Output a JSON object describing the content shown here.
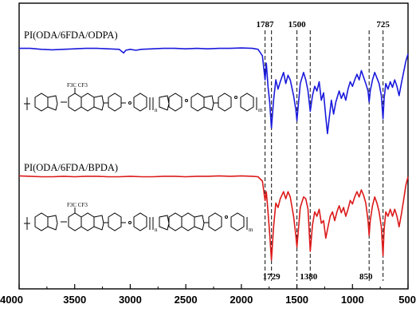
{
  "chart_data": {
    "type": "line",
    "title": "",
    "xlabel": "",
    "ylabel": "",
    "x_reversed": true,
    "xlim": [
      4000,
      500
    ],
    "x_ticks": [
      "4000",
      "3500",
      "3000",
      "2500",
      "2000",
      "1500",
      "1000",
      "500"
    ],
    "y_ticks_shown": false,
    "grid": false,
    "series": [
      {
        "name": "PI(ODA/6FDA/ODPA)",
        "color": "#1a1adc",
        "offset": 0.5,
        "points": [
          [
            4000,
            0.04
          ],
          [
            3900,
            0.04
          ],
          [
            3800,
            0.05
          ],
          [
            3700,
            0.055
          ],
          [
            3600,
            0.05
          ],
          [
            3500,
            0.045
          ],
          [
            3400,
            0.04
          ],
          [
            3300,
            0.04
          ],
          [
            3200,
            0.045
          ],
          [
            3100,
            0.05
          ],
          [
            3060,
            0.09
          ],
          [
            3040,
            0.06
          ],
          [
            3000,
            0.05
          ],
          [
            2950,
            0.06
          ],
          [
            2900,
            0.05
          ],
          [
            2800,
            0.045
          ],
          [
            2700,
            0.04
          ],
          [
            2600,
            0.04
          ],
          [
            2500,
            0.045
          ],
          [
            2400,
            0.04
          ],
          [
            2300,
            0.045
          ],
          [
            2200,
            0.04
          ],
          [
            2100,
            0.04
          ],
          [
            2000,
            0.035
          ],
          [
            1900,
            0.04
          ],
          [
            1850,
            0.05
          ],
          [
            1810,
            0.12
          ],
          [
            1787,
            0.38
          ],
          [
            1775,
            0.2
          ],
          [
            1760,
            0.45
          ],
          [
            1745,
            0.62
          ],
          [
            1729,
            0.9
          ],
          [
            1710,
            0.6
          ],
          [
            1690,
            0.38
          ],
          [
            1670,
            0.48
          ],
          [
            1650,
            0.4
          ],
          [
            1620,
            0.3
          ],
          [
            1600,
            0.42
          ],
          [
            1580,
            0.33
          ],
          [
            1560,
            0.38
          ],
          [
            1530,
            0.55
          ],
          [
            1510,
            0.7
          ],
          [
            1500,
            0.82
          ],
          [
            1490,
            0.68
          ],
          [
            1470,
            0.42
          ],
          [
            1440,
            0.3
          ],
          [
            1420,
            0.38
          ],
          [
            1400,
            0.5
          ],
          [
            1380,
            0.72
          ],
          [
            1360,
            0.55
          ],
          [
            1340,
            0.45
          ],
          [
            1320,
            0.5
          ],
          [
            1300,
            0.4
          ],
          [
            1280,
            0.6
          ],
          [
            1260,
            0.52
          ],
          [
            1240,
            0.78
          ],
          [
            1225,
            0.96
          ],
          [
            1210,
            0.8
          ],
          [
            1190,
            0.6
          ],
          [
            1170,
            0.75
          ],
          [
            1150,
            0.62
          ],
          [
            1120,
            0.5
          ],
          [
            1100,
            0.58
          ],
          [
            1080,
            0.52
          ],
          [
            1060,
            0.6
          ],
          [
            1040,
            0.48
          ],
          [
            1020,
            0.4
          ],
          [
            1000,
            0.45
          ],
          [
            980,
            0.38
          ],
          [
            960,
            0.32
          ],
          [
            940,
            0.38
          ],
          [
            920,
            0.28
          ],
          [
            900,
            0.35
          ],
          [
            880,
            0.42
          ],
          [
            860,
            0.5
          ],
          [
            850,
            0.62
          ],
          [
            840,
            0.5
          ],
          [
            820,
            0.38
          ],
          [
            800,
            0.3
          ],
          [
            780,
            0.36
          ],
          [
            760,
            0.42
          ],
          [
            740,
            0.55
          ],
          [
            725,
            0.8
          ],
          [
            715,
            0.58
          ],
          [
            700,
            0.42
          ],
          [
            680,
            0.48
          ],
          [
            660,
            0.4
          ],
          [
            640,
            0.46
          ],
          [
            620,
            0.38
          ],
          [
            600,
            0.45
          ],
          [
            580,
            0.55
          ],
          [
            560,
            0.42
          ],
          [
            540,
            0.3
          ],
          [
            520,
            0.18
          ],
          [
            500,
            0.1
          ]
        ]
      },
      {
        "name": "PI(ODA/6FDA/BPDA)",
        "color": "#dc1a1a",
        "offset": 0.0,
        "points": [
          [
            4000,
            0.04
          ],
          [
            3900,
            0.045
          ],
          [
            3800,
            0.05
          ],
          [
            3700,
            0.05
          ],
          [
            3600,
            0.045
          ],
          [
            3500,
            0.05
          ],
          [
            3400,
            0.045
          ],
          [
            3300,
            0.045
          ],
          [
            3200,
            0.05
          ],
          [
            3100,
            0.05
          ],
          [
            3000,
            0.045
          ],
          [
            2900,
            0.05
          ],
          [
            2800,
            0.05
          ],
          [
            2700,
            0.045
          ],
          [
            2600,
            0.045
          ],
          [
            2500,
            0.05
          ],
          [
            2400,
            0.045
          ],
          [
            2300,
            0.045
          ],
          [
            2200,
            0.04
          ],
          [
            2100,
            0.045
          ],
          [
            2000,
            0.04
          ],
          [
            1900,
            0.045
          ],
          [
            1850,
            0.05
          ],
          [
            1810,
            0.1
          ],
          [
            1787,
            0.32
          ],
          [
            1775,
            0.22
          ],
          [
            1760,
            0.45
          ],
          [
            1745,
            0.7
          ],
          [
            1729,
            1.0
          ],
          [
            1710,
            0.62
          ],
          [
            1690,
            0.35
          ],
          [
            1670,
            0.4
          ],
          [
            1650,
            0.3
          ],
          [
            1620,
            0.22
          ],
          [
            1600,
            0.3
          ],
          [
            1580,
            0.22
          ],
          [
            1560,
            0.28
          ],
          [
            1530,
            0.5
          ],
          [
            1510,
            0.72
          ],
          [
            1500,
            0.85
          ],
          [
            1490,
            0.7
          ],
          [
            1470,
            0.4
          ],
          [
            1440,
            0.28
          ],
          [
            1420,
            0.3
          ],
          [
            1400,
            0.42
          ],
          [
            1380,
            0.9
          ],
          [
            1360,
            0.6
          ],
          [
            1340,
            0.45
          ],
          [
            1320,
            0.5
          ],
          [
            1300,
            0.42
          ],
          [
            1280,
            0.58
          ],
          [
            1260,
            0.55
          ],
          [
            1240,
            0.75
          ],
          [
            1220,
            0.62
          ],
          [
            1200,
            0.5
          ],
          [
            1180,
            0.45
          ],
          [
            1160,
            0.55
          ],
          [
            1140,
            0.45
          ],
          [
            1120,
            0.38
          ],
          [
            1100,
            0.46
          ],
          [
            1080,
            0.4
          ],
          [
            1060,
            0.5
          ],
          [
            1040,
            0.42
          ],
          [
            1020,
            0.32
          ],
          [
            1000,
            0.36
          ],
          [
            980,
            0.28
          ],
          [
            960,
            0.22
          ],
          [
            940,
            0.28
          ],
          [
            920,
            0.2
          ],
          [
            900,
            0.26
          ],
          [
            880,
            0.35
          ],
          [
            860,
            0.55
          ],
          [
            850,
            0.72
          ],
          [
            840,
            0.55
          ],
          [
            820,
            0.38
          ],
          [
            800,
            0.28
          ],
          [
            780,
            0.35
          ],
          [
            760,
            0.45
          ],
          [
            740,
            0.62
          ],
          [
            725,
            0.95
          ],
          [
            715,
            0.65
          ],
          [
            700,
            0.45
          ],
          [
            680,
            0.5
          ],
          [
            660,
            0.42
          ],
          [
            640,
            0.5
          ],
          [
            620,
            0.42
          ],
          [
            600,
            0.5
          ],
          [
            580,
            0.62
          ],
          [
            560,
            0.48
          ],
          [
            540,
            0.32
          ],
          [
            520,
            0.15
          ],
          [
            500,
            0.05
          ]
        ]
      }
    ],
    "peak_annotations": [
      {
        "label": "1787",
        "x": 1787,
        "label_position": "top"
      },
      {
        "label": "1500",
        "x": 1500,
        "label_position": "top"
      },
      {
        "label": "725",
        "x": 725,
        "label_position": "top"
      },
      {
        "label": "1729",
        "x": 1729,
        "label_position": "bottom"
      },
      {
        "label": "1380",
        "x": 1380,
        "label_position": "bottom"
      },
      {
        "label": "850",
        "x": 850,
        "label_position": "bottom"
      }
    ],
    "dashed_reference_lines_x": [
      1787,
      1729,
      1500,
      1380,
      850,
      725
    ]
  },
  "structures": {
    "odpa": {
      "fluoro_label": "F3C  CF3",
      "n_sub": "n",
      "m_sub": "m"
    },
    "bpda": {
      "fluoro_label": "F3C  CF3",
      "n_sub": "n",
      "m_sub": "m"
    }
  }
}
